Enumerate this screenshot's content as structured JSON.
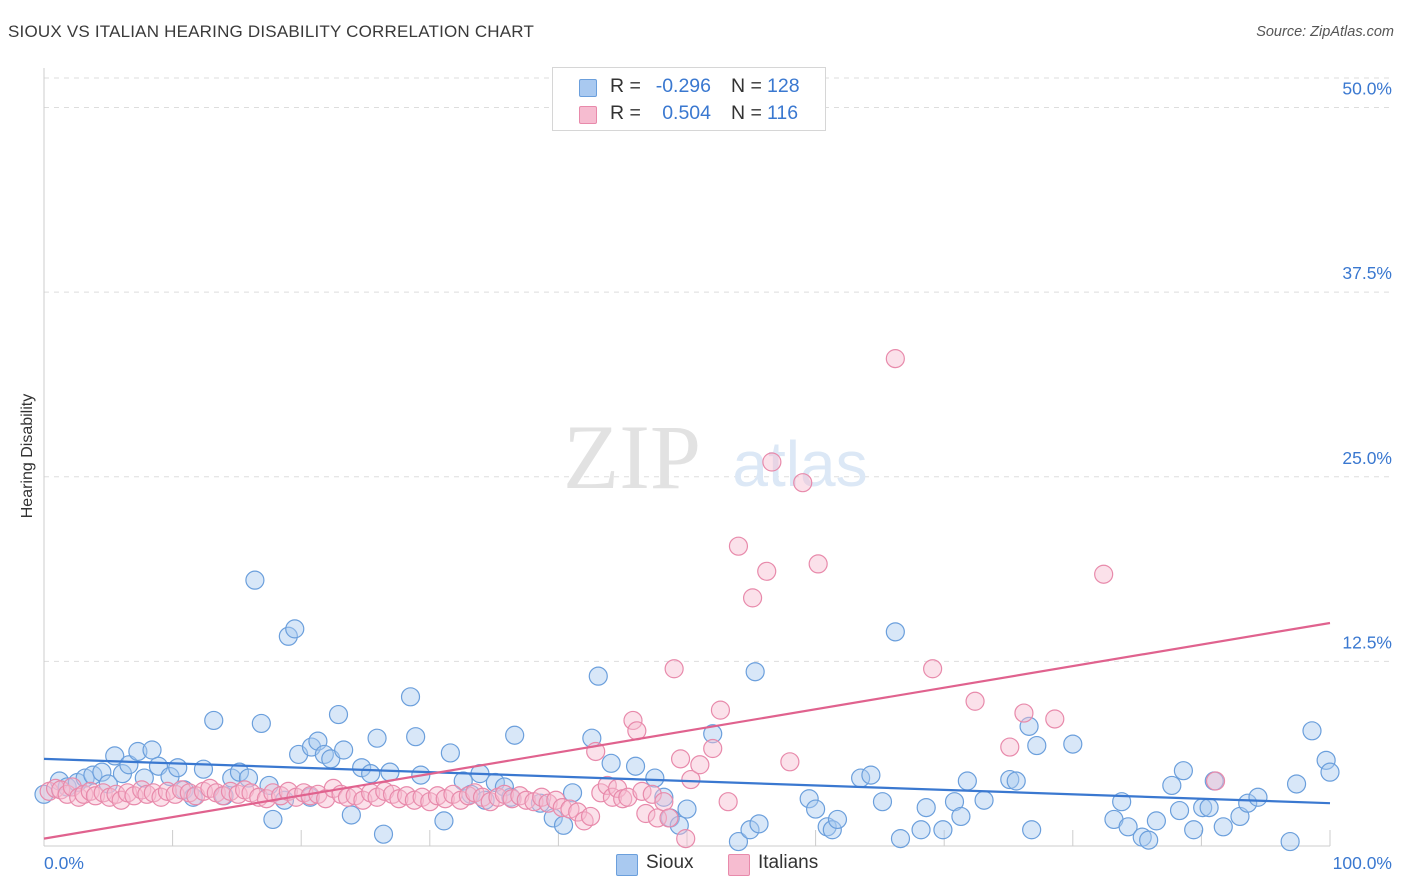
{
  "header": {
    "title": "SIOUX VS ITALIAN HEARING DISABILITY CORRELATION CHART",
    "source": "Source: ZipAtlas.com"
  },
  "watermark": {
    "zip": "ZIP",
    "atlas": "atlas"
  },
  "legend": {
    "rows": [
      {
        "r_label": "R =",
        "r_value": "-0.296",
        "n_label": "N =",
        "n_value": "128"
      },
      {
        "r_label": "R =",
        "r_value": "0.504",
        "n_label": "N =",
        "n_value": "116"
      }
    ]
  },
  "bottom_legend": [
    "Sioux",
    "Italians"
  ],
  "colors": {
    "sioux_fill": "#a9c9f0",
    "sioux_stroke": "#6b9fdc",
    "sioux_line": "#3a78d0",
    "italians_fill": "#f6bcd0",
    "italians_stroke": "#e88aab",
    "italians_line": "#e0628e",
    "tick_label": "#3a78d0",
    "grid": "#dddddd"
  },
  "chart_data": {
    "type": "scatter",
    "title": "SIOUX VS ITALIAN HEARING DISABILITY CORRELATION CHART",
    "xlabel": "",
    "ylabel": "Hearing Disability",
    "xlim": [
      0,
      100
    ],
    "ylim": [
      0,
      52
    ],
    "x_tick_labels": [
      "0.0%",
      "100.0%"
    ],
    "y_ticks": [
      12.5,
      25.0,
      37.5,
      50.0
    ],
    "y_tick_labels": [
      "12.5%",
      "25.0%",
      "37.5%",
      "50.0%"
    ],
    "grid": true,
    "legend_position": "top-center",
    "series": [
      {
        "name": "Sioux",
        "r": -0.296,
        "n": 128,
        "trend": {
          "x": [
            0,
            100
          ],
          "y": [
            5.9,
            2.9
          ]
        },
        "points": [
          [
            0.0,
            3.5
          ],
          [
            1.2,
            4.4
          ],
          [
            1.8,
            4.0
          ],
          [
            2.6,
            4.3
          ],
          [
            3.2,
            4.6
          ],
          [
            3.8,
            4.8
          ],
          [
            4.5,
            5.0
          ],
          [
            5.0,
            4.2
          ],
          [
            5.5,
            6.1
          ],
          [
            6.1,
            4.9
          ],
          [
            6.6,
            5.5
          ],
          [
            7.3,
            6.4
          ],
          [
            7.8,
            4.6
          ],
          [
            8.4,
            6.5
          ],
          [
            8.9,
            5.4
          ],
          [
            9.8,
            4.7
          ],
          [
            10.4,
            5.3
          ],
          [
            10.9,
            3.8
          ],
          [
            11.6,
            3.3
          ],
          [
            12.4,
            5.2
          ],
          [
            13.2,
            8.5
          ],
          [
            14.0,
            3.4
          ],
          [
            14.6,
            4.6
          ],
          [
            15.2,
            5.0
          ],
          [
            15.9,
            4.6
          ],
          [
            16.4,
            18.0
          ],
          [
            16.9,
            8.3
          ],
          [
            17.5,
            4.1
          ],
          [
            17.8,
            1.8
          ],
          [
            18.7,
            3.1
          ],
          [
            19.0,
            14.2
          ],
          [
            19.5,
            14.7
          ],
          [
            19.8,
            6.2
          ],
          [
            20.7,
            3.3
          ],
          [
            20.8,
            6.7
          ],
          [
            21.3,
            7.1
          ],
          [
            21.8,
            6.2
          ],
          [
            22.3,
            5.9
          ],
          [
            22.9,
            8.9
          ],
          [
            23.3,
            6.5
          ],
          [
            23.9,
            2.1
          ],
          [
            24.7,
            5.3
          ],
          [
            25.4,
            4.9
          ],
          [
            25.9,
            7.3
          ],
          [
            26.4,
            0.8
          ],
          [
            26.9,
            5.0
          ],
          [
            28.5,
            10.1
          ],
          [
            28.9,
            7.4
          ],
          [
            29.3,
            4.8
          ],
          [
            31.1,
            1.7
          ],
          [
            31.6,
            6.3
          ],
          [
            32.6,
            4.4
          ],
          [
            33.2,
            3.5
          ],
          [
            33.9,
            4.9
          ],
          [
            34.3,
            3.1
          ],
          [
            35.1,
            4.3
          ],
          [
            35.8,
            4.0
          ],
          [
            36.3,
            3.3
          ],
          [
            36.6,
            7.5
          ],
          [
            38.6,
            2.9
          ],
          [
            39.6,
            1.9
          ],
          [
            40.4,
            1.4
          ],
          [
            41.1,
            3.6
          ],
          [
            42.6,
            7.3
          ],
          [
            43.1,
            11.5
          ],
          [
            44.1,
            5.6
          ],
          [
            46.0,
            5.4
          ],
          [
            47.5,
            4.6
          ],
          [
            48.2,
            3.3
          ],
          [
            48.7,
            1.9
          ],
          [
            49.4,
            1.4
          ],
          [
            50.0,
            2.5
          ],
          [
            52.0,
            7.6
          ],
          [
            54.0,
            0.3
          ],
          [
            54.9,
            1.1
          ],
          [
            55.3,
            11.8
          ],
          [
            55.6,
            1.5
          ],
          [
            59.5,
            3.2
          ],
          [
            60.0,
            2.5
          ],
          [
            60.9,
            1.3
          ],
          [
            61.3,
            1.1
          ],
          [
            61.7,
            1.8
          ],
          [
            63.5,
            4.6
          ],
          [
            64.3,
            4.8
          ],
          [
            65.2,
            3.0
          ],
          [
            66.2,
            14.5
          ],
          [
            66.6,
            0.5
          ],
          [
            68.2,
            1.1
          ],
          [
            68.6,
            2.6
          ],
          [
            69.9,
            1.1
          ],
          [
            70.8,
            3.0
          ],
          [
            71.3,
            2.0
          ],
          [
            71.8,
            4.4
          ],
          [
            73.1,
            3.1
          ],
          [
            75.1,
            4.5
          ],
          [
            75.6,
            4.4
          ],
          [
            76.6,
            8.1
          ],
          [
            76.8,
            1.1
          ],
          [
            77.2,
            6.8
          ],
          [
            80.0,
            6.9
          ],
          [
            83.2,
            1.8
          ],
          [
            83.8,
            3.0
          ],
          [
            84.3,
            1.3
          ],
          [
            85.4,
            0.6
          ],
          [
            85.9,
            0.4
          ],
          [
            86.5,
            1.7
          ],
          [
            87.7,
            4.1
          ],
          [
            88.3,
            2.4
          ],
          [
            88.6,
            5.1
          ],
          [
            89.4,
            1.1
          ],
          [
            90.1,
            2.6
          ],
          [
            90.6,
            2.6
          ],
          [
            91.0,
            4.4
          ],
          [
            91.7,
            1.3
          ],
          [
            93.0,
            2.0
          ],
          [
            93.6,
            2.9
          ],
          [
            94.4,
            3.3
          ],
          [
            96.9,
            0.3
          ],
          [
            97.4,
            4.2
          ],
          [
            98.6,
            7.8
          ],
          [
            99.7,
            5.8
          ],
          [
            100.0,
            5.0
          ]
        ]
      },
      {
        "name": "Italians",
        "r": 0.504,
        "n": 116,
        "trend": {
          "x": [
            0,
            100
          ],
          "y": [
            0.5,
            15.1
          ]
        },
        "points": [
          [
            0.4,
            3.7
          ],
          [
            0.9,
            3.9
          ],
          [
            1.3,
            3.8
          ],
          [
            1.8,
            3.5
          ],
          [
            2.2,
            4.0
          ],
          [
            2.7,
            3.3
          ],
          [
            3.1,
            3.5
          ],
          [
            3.6,
            3.7
          ],
          [
            4.0,
            3.4
          ],
          [
            4.6,
            3.6
          ],
          [
            5.1,
            3.3
          ],
          [
            5.6,
            3.5
          ],
          [
            6.0,
            3.1
          ],
          [
            6.5,
            3.6
          ],
          [
            7.0,
            3.4
          ],
          [
            7.6,
            3.8
          ],
          [
            8.0,
            3.5
          ],
          [
            8.5,
            3.6
          ],
          [
            9.1,
            3.3
          ],
          [
            9.6,
            3.7
          ],
          [
            10.2,
            3.5
          ],
          [
            10.7,
            3.8
          ],
          [
            11.3,
            3.6
          ],
          [
            11.8,
            3.4
          ],
          [
            12.4,
            3.7
          ],
          [
            12.9,
            3.9
          ],
          [
            13.4,
            3.6
          ],
          [
            13.9,
            3.4
          ],
          [
            14.5,
            3.7
          ],
          [
            15.1,
            3.5
          ],
          [
            15.6,
            3.8
          ],
          [
            16.1,
            3.6
          ],
          [
            16.7,
            3.3
          ],
          [
            17.3,
            3.2
          ],
          [
            17.8,
            3.6
          ],
          [
            18.4,
            3.4
          ],
          [
            19.0,
            3.7
          ],
          [
            19.6,
            3.3
          ],
          [
            20.2,
            3.6
          ],
          [
            20.7,
            3.4
          ],
          [
            21.3,
            3.5
          ],
          [
            21.9,
            3.2
          ],
          [
            22.5,
            3.9
          ],
          [
            23.1,
            3.5
          ],
          [
            23.6,
            3.3
          ],
          [
            24.2,
            3.4
          ],
          [
            24.8,
            3.1
          ],
          [
            25.4,
            3.6
          ],
          [
            25.9,
            3.3
          ],
          [
            26.5,
            3.7
          ],
          [
            27.1,
            3.5
          ],
          [
            27.6,
            3.2
          ],
          [
            28.2,
            3.4
          ],
          [
            28.8,
            3.1
          ],
          [
            29.4,
            3.3
          ],
          [
            30.0,
            3.0
          ],
          [
            30.6,
            3.4
          ],
          [
            31.2,
            3.2
          ],
          [
            31.8,
            3.5
          ],
          [
            32.4,
            3.1
          ],
          [
            33.0,
            3.4
          ],
          [
            33.5,
            3.6
          ],
          [
            34.1,
            3.3
          ],
          [
            34.7,
            3.0
          ],
          [
            35.3,
            3.3
          ],
          [
            35.8,
            3.5
          ],
          [
            36.4,
            3.2
          ],
          [
            37.0,
            3.4
          ],
          [
            37.5,
            3.1
          ],
          [
            38.1,
            3.0
          ],
          [
            38.7,
            3.3
          ],
          [
            39.2,
            2.9
          ],
          [
            39.8,
            3.1
          ],
          [
            40.3,
            2.6
          ],
          [
            40.9,
            2.5
          ],
          [
            41.5,
            2.3
          ],
          [
            42.0,
            1.7
          ],
          [
            42.5,
            2.0
          ],
          [
            42.9,
            6.4
          ],
          [
            43.3,
            3.6
          ],
          [
            43.8,
            4.1
          ],
          [
            44.2,
            3.3
          ],
          [
            44.6,
            3.9
          ],
          [
            45.0,
            3.2
          ],
          [
            45.4,
            3.3
          ],
          [
            45.8,
            8.5
          ],
          [
            46.1,
            7.8
          ],
          [
            46.5,
            3.7
          ],
          [
            46.8,
            2.2
          ],
          [
            47.3,
            3.5
          ],
          [
            47.7,
            1.9
          ],
          [
            48.2,
            3.0
          ],
          [
            48.6,
            1.9
          ],
          [
            49.0,
            12.0
          ],
          [
            49.5,
            5.9
          ],
          [
            49.9,
            0.5
          ],
          [
            50.3,
            4.5
          ],
          [
            51.0,
            5.5
          ],
          [
            52.0,
            6.6
          ],
          [
            52.6,
            9.2
          ],
          [
            53.2,
            3.0
          ],
          [
            54.0,
            20.3
          ],
          [
            55.1,
            16.8
          ],
          [
            56.2,
            18.6
          ],
          [
            56.6,
            26.0
          ],
          [
            58.0,
            5.7
          ],
          [
            59.0,
            24.6
          ],
          [
            60.2,
            19.1
          ],
          [
            66.2,
            33.0
          ],
          [
            69.1,
            12.0
          ],
          [
            72.4,
            9.8
          ],
          [
            75.1,
            6.7
          ],
          [
            76.2,
            9.0
          ],
          [
            78.6,
            8.6
          ],
          [
            82.4,
            18.4
          ],
          [
            91.1,
            4.4
          ]
        ]
      }
    ]
  }
}
